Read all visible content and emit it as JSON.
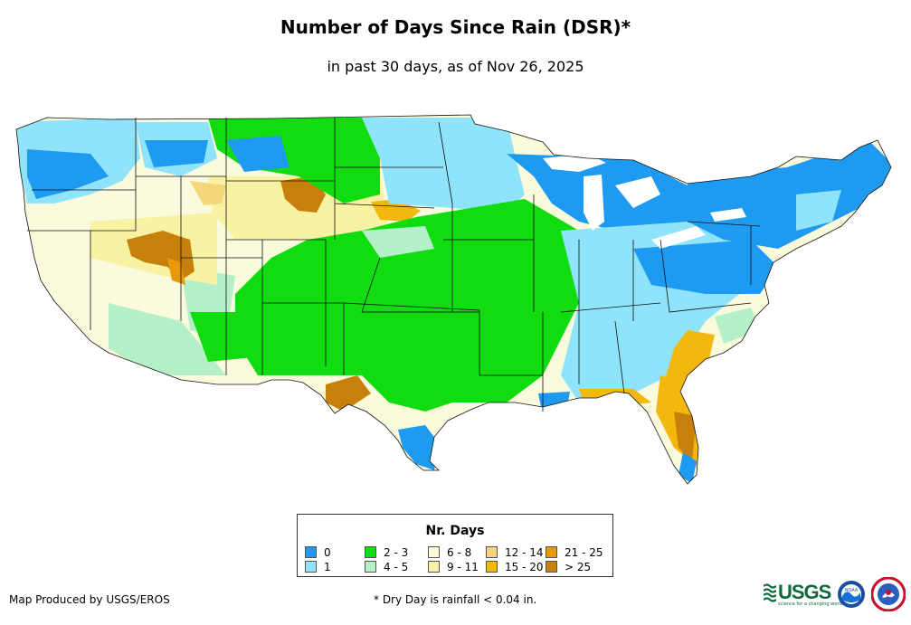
{
  "title": "Number of Days Since Rain (DSR)*",
  "subtitle": "in past 30 days, as of Nov 26, 2025",
  "legend": {
    "title": "Nr. Days",
    "items": [
      {
        "label": "0",
        "color": "#1e9af0"
      },
      {
        "label": "1",
        "color": "#8fe3fb"
      },
      {
        "label": "2 - 3",
        "color": "#10dc10"
      },
      {
        "label": "4 - 5",
        "color": "#b5f0c8"
      },
      {
        "label": "6 - 8",
        "color": "#fafadc"
      },
      {
        "label": "9 - 11",
        "color": "#f8f2a2"
      },
      {
        "label": "12 - 14",
        "color": "#f6d67a"
      },
      {
        "label": "15 - 20",
        "color": "#f2b80e"
      },
      {
        "label": "21 - 25",
        "color": "#e8980a"
      },
      {
        "label": "> 25",
        "color": "#c8800c"
      }
    ]
  },
  "credit": "Map Produced by USGS/EROS",
  "footnote": "* Dry Day is rainfall < 0.04 in.",
  "logos": {
    "usgs": "USGS",
    "usgs_tagline": "science for a changing world",
    "noaa": "NOAA"
  }
}
